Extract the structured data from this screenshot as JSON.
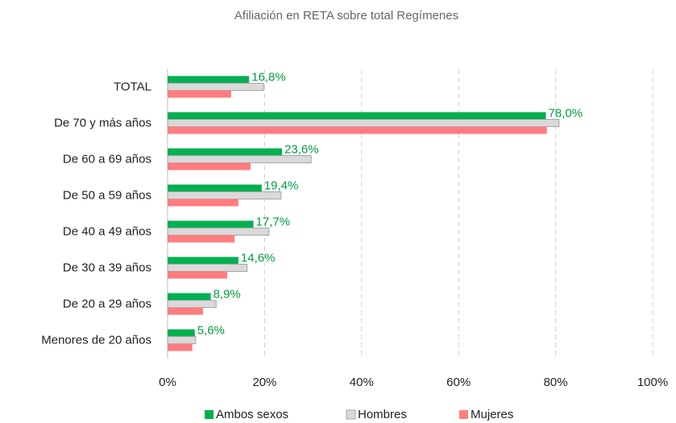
{
  "chart_data": {
    "type": "hbar",
    "title": "Afiliación en RETA sobre total Regímenes",
    "categories": [
      "TOTAL",
      "De 70 y más años",
      "De 60 a 69 años",
      "De 50 a 59 años",
      "De 40 a 49 años",
      "De 30 a 39 años",
      "De 20 a 29 años",
      "Menores de 20 años"
    ],
    "series": [
      {
        "name": "Ambos sexos",
        "color": "#00b050",
        "values": [
          16.8,
          78.0,
          23.6,
          19.4,
          17.7,
          14.6,
          8.9,
          5.6
        ],
        "value_labels": [
          "16,8%",
          "78,0%",
          "23,6%",
          "19,4%",
          "17,7%",
          "14,6%",
          "8,9%",
          "5,6%"
        ]
      },
      {
        "name": "Hombres",
        "color": "#d9d9d9",
        "values": [
          19.8,
          80.7,
          29.6,
          23.4,
          20.9,
          16.4,
          10.0,
          5.8
        ]
      },
      {
        "name": "Mujeres",
        "color": "#ff7c80",
        "values": [
          13.1,
          78.2,
          17.1,
          14.6,
          13.8,
          12.3,
          7.3,
          5.1
        ]
      }
    ],
    "xlim": [
      0,
      100
    ],
    "xticks": [
      {
        "value": 0,
        "label": "0%"
      },
      {
        "value": 20,
        "label": "20%"
      },
      {
        "value": 40,
        "label": "40%"
      },
      {
        "value": 60,
        "label": "60%"
      },
      {
        "value": 80,
        "label": "80%"
      },
      {
        "value": 100,
        "label": "100%"
      }
    ],
    "grid": true,
    "legend": "bottom",
    "value_label_color": "#00a040"
  }
}
